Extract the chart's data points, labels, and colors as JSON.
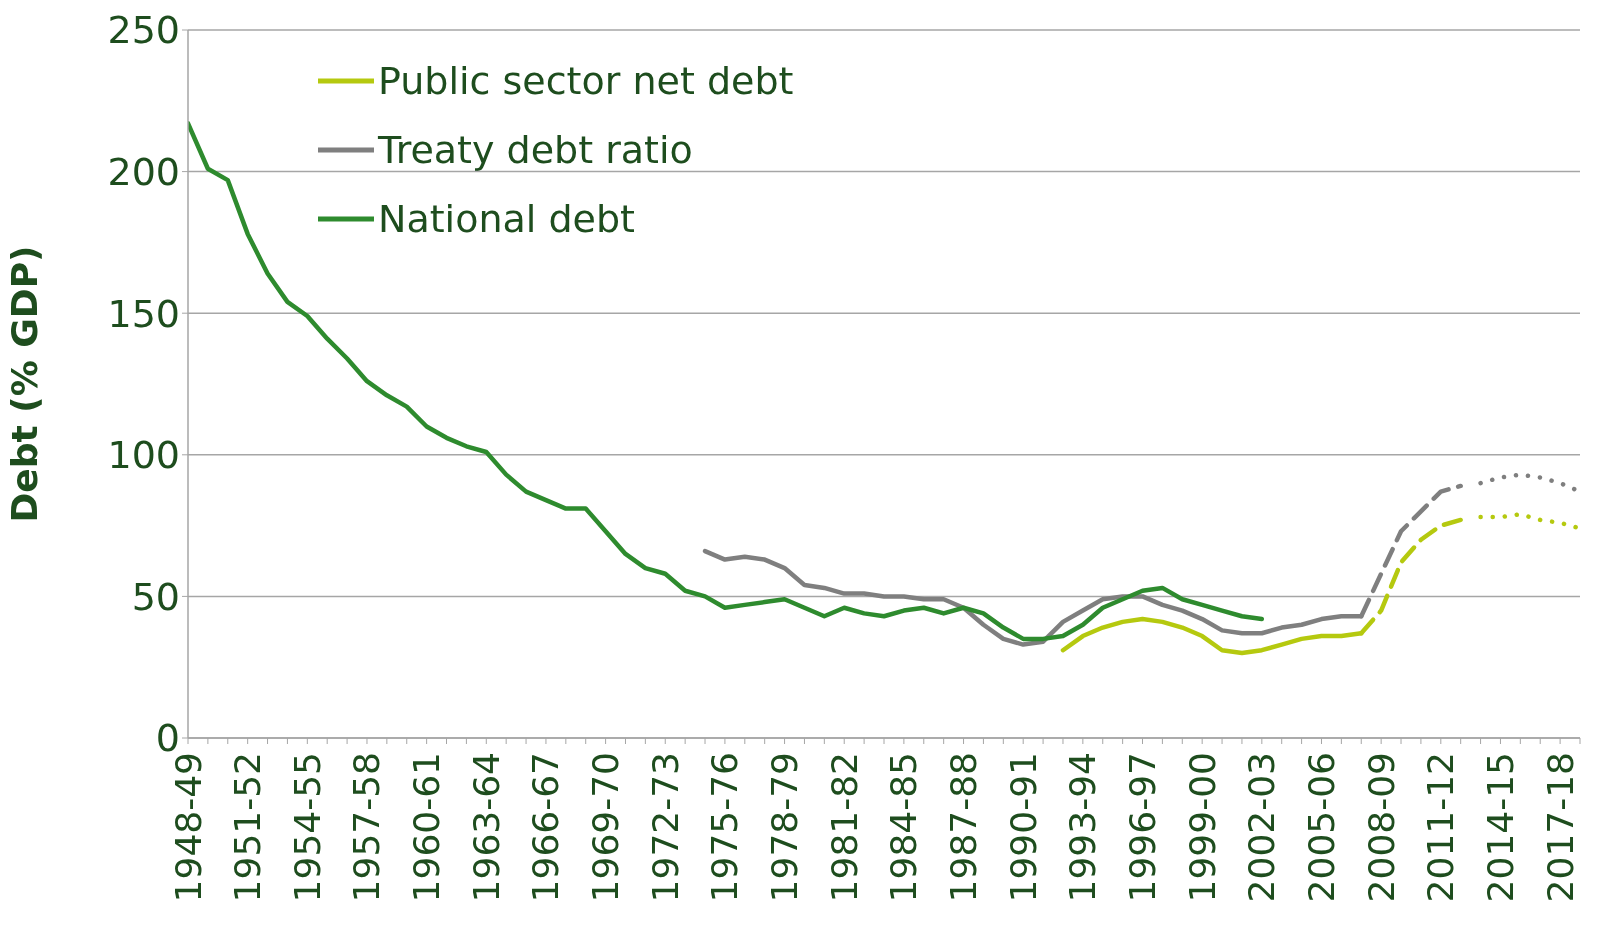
{
  "chart_data": {
    "type": "line",
    "ylabel": "Debt (% GDP)",
    "categories": [
      "1948-49",
      null,
      null,
      "1951-52",
      null,
      null,
      "1954-55",
      null,
      null,
      "1957-58",
      null,
      null,
      "1960-61",
      null,
      null,
      "1963-64",
      null,
      null,
      "1966-67",
      null,
      null,
      "1969-70",
      null,
      null,
      "1972-73",
      null,
      null,
      "1975-76",
      null,
      null,
      "1978-79",
      null,
      null,
      "1981-82",
      null,
      null,
      "1984-85",
      null,
      null,
      "1987-88",
      null,
      null,
      "1990-91",
      null,
      null,
      "1993-94",
      null,
      null,
      "1996-97",
      null,
      null,
      "1999-00",
      null,
      null,
      "2002-03",
      null,
      null,
      "2005-06",
      null,
      null,
      "2008-09",
      null,
      null,
      "2011-12",
      null,
      null,
      "2014-15",
      null,
      null,
      "2017-18",
      null
    ],
    "ylim": [
      0,
      250
    ],
    "yticks": [
      0,
      50,
      100,
      150,
      200,
      250
    ],
    "grid": "y",
    "legend": "top left",
    "marker": "none",
    "series": [
      {
        "name": "Public sector net debt",
        "color": "#b5c90f",
        "line_style": "solid",
        "values": [
          null,
          null,
          null,
          null,
          null,
          null,
          null,
          null,
          null,
          null,
          null,
          null,
          null,
          null,
          null,
          null,
          null,
          null,
          null,
          null,
          null,
          null,
          null,
          null,
          null,
          null,
          null,
          null,
          null,
          null,
          null,
          null,
          null,
          null,
          null,
          null,
          null,
          null,
          null,
          null,
          null,
          null,
          null,
          null,
          31,
          36,
          39,
          41,
          42,
          41,
          39,
          36,
          31,
          30,
          31,
          33,
          35,
          36,
          36,
          37,
          null,
          null,
          null,
          null,
          null,
          null,
          null,
          null,
          null,
          null,
          null
        ]
      },
      {
        "name": "Treaty debt ratio",
        "color": "#7f7f7f",
        "line_style": "solid",
        "values": [
          null,
          null,
          null,
          null,
          null,
          null,
          null,
          null,
          null,
          null,
          null,
          null,
          null,
          null,
          null,
          null,
          null,
          null,
          null,
          null,
          null,
          null,
          null,
          null,
          null,
          null,
          66,
          63,
          64,
          63,
          60,
          54,
          53,
          51,
          51,
          50,
          50,
          49,
          49,
          46,
          40,
          35,
          33,
          34,
          41,
          45,
          49,
          50,
          50,
          47,
          45,
          42,
          38,
          37,
          37,
          39,
          40,
          42,
          43,
          43,
          null,
          null,
          null,
          null,
          null,
          null,
          null,
          null,
          null,
          null,
          null
        ]
      },
      {
        "name": "National debt",
        "color": "#2e8b2e",
        "line_style": "solid",
        "values": [
          217,
          201,
          197,
          178,
          164,
          154,
          149,
          141,
          134,
          126,
          121,
          117,
          110,
          106,
          103,
          101,
          93,
          87,
          84,
          81,
          81,
          73,
          65,
          60,
          58,
          52,
          50,
          46,
          47,
          48,
          49,
          46,
          43,
          46,
          44,
          43,
          45,
          46,
          44,
          46,
          44,
          39,
          35,
          35,
          36,
          40,
          46,
          49,
          52,
          53,
          49,
          47,
          45,
          43,
          42,
          null,
          null,
          null,
          null,
          null,
          null,
          null,
          null,
          null,
          null,
          null,
          null,
          null,
          null,
          null,
          null
        ]
      },
      {
        "color": "#b5c90f",
        "line_style": "dashed",
        "values": [
          null,
          null,
          null,
          null,
          null,
          null,
          null,
          null,
          null,
          null,
          null,
          null,
          null,
          null,
          null,
          null,
          null,
          null,
          null,
          null,
          null,
          null,
          null,
          null,
          null,
          null,
          null,
          null,
          null,
          null,
          null,
          null,
          null,
          null,
          null,
          null,
          null,
          null,
          null,
          null,
          null,
          null,
          null,
          null,
          null,
          null,
          null,
          null,
          null,
          null,
          null,
          null,
          null,
          null,
          null,
          null,
          null,
          null,
          null,
          37,
          45,
          62,
          70,
          75,
          77,
          null,
          null,
          null,
          null,
          null,
          null
        ]
      },
      {
        "color": "#b5c90f",
        "line_style": "dotted",
        "values": [
          null,
          null,
          null,
          null,
          null,
          null,
          null,
          null,
          null,
          null,
          null,
          null,
          null,
          null,
          null,
          null,
          null,
          null,
          null,
          null,
          null,
          null,
          null,
          null,
          null,
          null,
          null,
          null,
          null,
          null,
          null,
          null,
          null,
          null,
          null,
          null,
          null,
          null,
          null,
          null,
          null,
          null,
          null,
          null,
          null,
          null,
          null,
          null,
          null,
          null,
          null,
          null,
          null,
          null,
          null,
          null,
          null,
          null,
          null,
          null,
          null,
          null,
          null,
          null,
          null,
          78,
          78,
          79,
          77,
          76,
          74
        ]
      },
      {
        "color": "#7f7f7f",
        "line_style": "dashed",
        "values": [
          null,
          null,
          null,
          null,
          null,
          null,
          null,
          null,
          null,
          null,
          null,
          null,
          null,
          null,
          null,
          null,
          null,
          null,
          null,
          null,
          null,
          null,
          null,
          null,
          null,
          null,
          null,
          null,
          null,
          null,
          null,
          null,
          null,
          null,
          null,
          null,
          null,
          null,
          null,
          null,
          null,
          null,
          null,
          null,
          null,
          null,
          null,
          null,
          null,
          null,
          null,
          null,
          null,
          null,
          null,
          null,
          null,
          null,
          null,
          43,
          58,
          73,
          80,
          87,
          89,
          null,
          null,
          null,
          null,
          null,
          null
        ]
      },
      {
        "color": "#7f7f7f",
        "line_style": "dotted",
        "values": [
          null,
          null,
          null,
          null,
          null,
          null,
          null,
          null,
          null,
          null,
          null,
          null,
          null,
          null,
          null,
          null,
          null,
          null,
          null,
          null,
          null,
          null,
          null,
          null,
          null,
          null,
          null,
          null,
          null,
          null,
          null,
          null,
          null,
          null,
          null,
          null,
          null,
          null,
          null,
          null,
          null,
          null,
          null,
          null,
          null,
          null,
          null,
          null,
          null,
          null,
          null,
          null,
          null,
          null,
          null,
          null,
          null,
          null,
          null,
          null,
          null,
          null,
          null,
          null,
          null,
          90,
          92,
          93,
          92,
          90,
          87
        ]
      }
    ]
  }
}
